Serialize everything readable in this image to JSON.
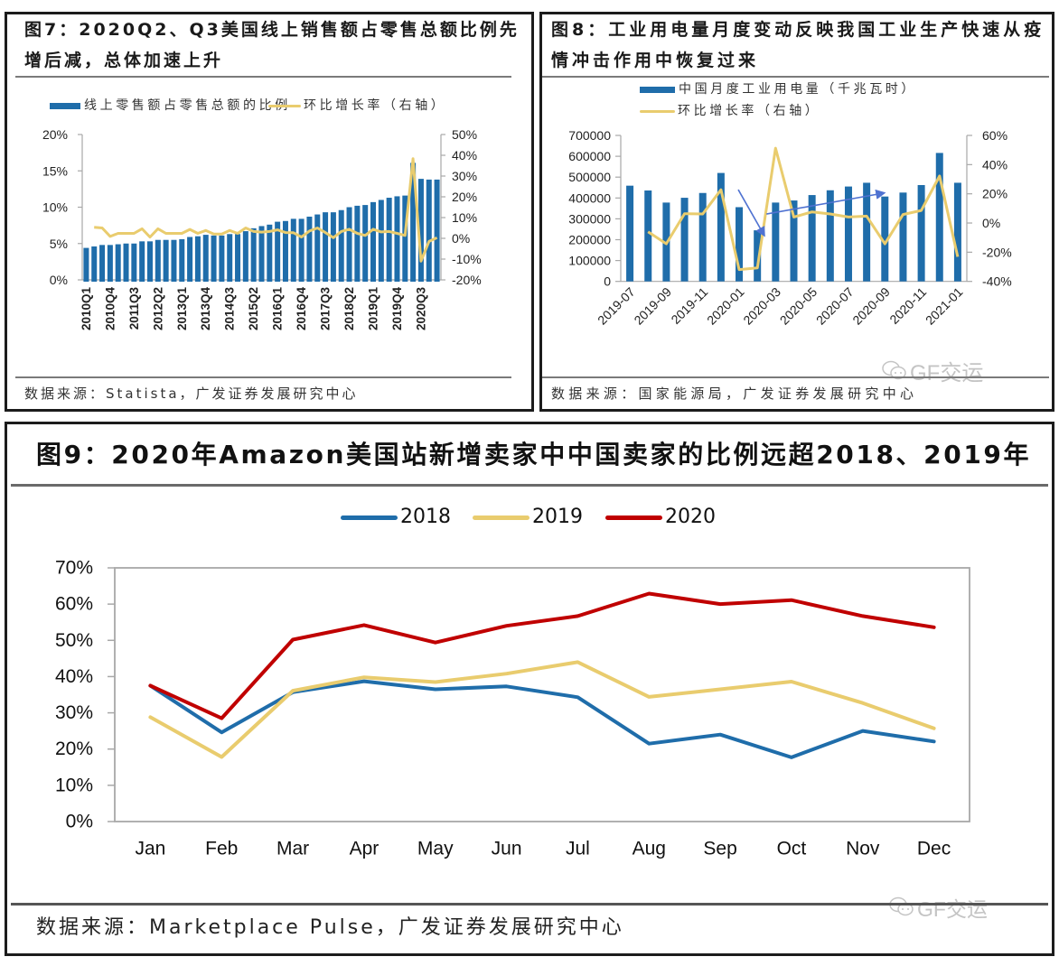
{
  "panels": {
    "fig7": {
      "title_line1": "图7：2020Q2、Q3美国线上销售额占零售总额比例先",
      "title_line2": "增后减，总体加速上升",
      "legend": [
        "线上零售额占零售总额的比例",
        "环比增长率（右轴）"
      ],
      "source": "数据来源：Statista，广发证券发展研究中心"
    },
    "fig8": {
      "title_line1": "图8：工业用电量月度变动反映我国工业生产快速从疫",
      "title_line2": "情冲击作用中恢复过来",
      "legend": [
        "中国月度工业用电量（千兆瓦时）",
        "环比增长率（右轴）"
      ],
      "source": "数据来源：国家能源局，广发证券发展研究中心"
    },
    "fig9": {
      "title": "图9：2020年Amazon美国站新增卖家中中国卖家的比例远超2018、2019年",
      "legend": [
        "2018",
        "2019",
        "2020"
      ],
      "source": "数据来源：Marketplace Pulse，广发证券发展研究中心"
    }
  },
  "watermark": {
    "icon": "wechat-icon",
    "text": "GF交运"
  },
  "colors": {
    "blue": "#1F6DAA",
    "yellow": "#E9CC6E",
    "red": "#C00000",
    "arrow": "#4F72D1"
  },
  "chart_data": [
    {
      "id": "fig7",
      "type": "bar",
      "title": "图7：2020Q2、Q3美国线上销售额占零售总额比例先增后减，总体加速上升",
      "xlabel": "",
      "categories": [
        "2010Q1",
        "2010Q2",
        "2010Q3",
        "2010Q4",
        "2011Q1",
        "2011Q2",
        "2011Q3",
        "2011Q4",
        "2012Q1",
        "2012Q2",
        "2012Q3",
        "2012Q4",
        "2013Q1",
        "2013Q2",
        "2013Q3",
        "2013Q4",
        "2014Q1",
        "2014Q2",
        "2014Q3",
        "2014Q4",
        "2015Q1",
        "2015Q2",
        "2015Q3",
        "2015Q4",
        "2016Q1",
        "2016Q2",
        "2016Q3",
        "2016Q4",
        "2017Q1",
        "2017Q2",
        "2017Q3",
        "2017Q4",
        "2018Q1",
        "2018Q2",
        "2018Q3",
        "2018Q4",
        "2019Q1",
        "2019Q2",
        "2019Q3",
        "2019Q4",
        "2020Q1",
        "2020Q2",
        "2020Q3",
        "2020Q4",
        "2021Q1"
      ],
      "x_tick_labels": [
        "2010Q1",
        "2010Q4",
        "2011Q3",
        "2012Q2",
        "2013Q1",
        "2013Q4",
        "2014Q3",
        "2015Q2",
        "2016Q1",
        "2016Q4",
        "2017Q3",
        "2018Q2",
        "2019Q1",
        "2019Q4",
        "2020Q3"
      ],
      "series": [
        {
          "name": "线上零售额占零售总额的比例",
          "type": "bar",
          "axis": "left",
          "color": "#1F6DAA",
          "unit": "%",
          "values": [
            4.4,
            4.6,
            4.8,
            4.8,
            4.9,
            5.0,
            5.0,
            5.3,
            5.3,
            5.5,
            5.5,
            5.5,
            5.6,
            5.9,
            6.0,
            6.2,
            6.1,
            6.1,
            6.3,
            6.3,
            6.7,
            7.1,
            7.4,
            7.6,
            8.0,
            8.1,
            8.4,
            8.4,
            8.7,
            9.0,
            9.3,
            9.3,
            9.6,
            10.0,
            10.2,
            10.3,
            10.7,
            11.0,
            11.3,
            11.5,
            11.6,
            16.1,
            13.9,
            13.8,
            13.8
          ]
        },
        {
          "name": "环比增长率（右轴）",
          "type": "line",
          "axis": "right",
          "color": "#E9CC6E",
          "unit": "%",
          "values": [
            null,
            5.3,
            5.0,
            0.9,
            2.4,
            2.4,
            2.4,
            4.6,
            0.6,
            4.6,
            2.4,
            2.4,
            2.4,
            4.3,
            2.4,
            3.8,
            2.1,
            2.1,
            3.8,
            2.4,
            5.0,
            3.3,
            3.0,
            3.3,
            4.1,
            2.8,
            2.7,
            0.6,
            3.5,
            5.0,
            2.8,
            0.3,
            3.3,
            4.4,
            2.4,
            1.4,
            4.4,
            3.1,
            3.3,
            2.4,
            1.4,
            38.4,
            -11.0,
            -1.5,
            0.3
          ]
        }
      ],
      "y_left": {
        "range": [
          0,
          20
        ],
        "ticks": [
          0,
          5,
          10,
          15,
          20
        ],
        "tick_labels": [
          "0%",
          "5%",
          "10%",
          "15%",
          "20%"
        ]
      },
      "y_right": {
        "range": [
          -20,
          50
        ],
        "ticks": [
          -20,
          -10,
          0,
          10,
          20,
          30,
          40,
          50
        ],
        "tick_labels": [
          "-20%",
          "-10%",
          "0%",
          "10%",
          "20%",
          "30%",
          "40%",
          "50%"
        ]
      },
      "legend": "top-center",
      "grid": false
    },
    {
      "id": "fig8",
      "type": "bar",
      "title": "图8：工业用电量月度变动反映我国工业生产快速从疫情冲击作用中恢复过来",
      "xlabel": "",
      "categories": [
        "2019-07",
        "2019-08",
        "2019-09",
        "2019-10",
        "2019-11",
        "2019-12",
        "2020-01",
        "2020-02",
        "2020-03",
        "2020-04",
        "2020-05",
        "2020-06",
        "2020-07",
        "2020-08",
        "2020-09",
        "2020-10",
        "2020-11",
        "2020-12",
        "2021-01"
      ],
      "x_tick_labels": [
        "2019-07",
        "2019-09",
        "2019-11",
        "2020-01",
        "2020-03",
        "2020-05",
        "2020-07",
        "2020-09",
        "2020-11",
        "2021-01"
      ],
      "series": [
        {
          "name": "中国月度工业用电量（千兆瓦时）",
          "type": "bar",
          "axis": "left",
          "color": "#1F6DAA",
          "values": [
            459000,
            436000,
            378000,
            401000,
            424000,
            520000,
            356000,
            245000,
            378000,
            388000,
            414000,
            437000,
            455000,
            473000,
            407000,
            426000,
            462000,
            616000,
            473000
          ]
        },
        {
          "name": "环比增长率（右轴）",
          "type": "line",
          "axis": "right",
          "color": "#E9CC6E",
          "unit": "%",
          "values": [
            null,
            -6.0,
            -14.2,
            6.4,
            6.2,
            22.8,
            -31.9,
            -30.7,
            51.3,
            4.1,
            7.6,
            6.2,
            4.1,
            4.7,
            -14.3,
            5.8,
            8.6,
            32.2,
            -23.1
          ]
        }
      ],
      "y_left": {
        "range": [
          0,
          700000
        ],
        "ticks": [
          0,
          100000,
          200000,
          300000,
          400000,
          500000,
          600000,
          700000
        ],
        "tick_labels": [
          "0",
          "100000",
          "200000",
          "300000",
          "400000",
          "500000",
          "600000",
          "700000"
        ]
      },
      "y_right": {
        "range": [
          -40,
          60
        ],
        "ticks": [
          -40,
          -20,
          0,
          20,
          40,
          60
        ],
        "tick_labels": [
          "-40%",
          "-20%",
          "0%",
          "20%",
          "40%",
          "60%"
        ]
      },
      "annotations": [
        {
          "type": "arrow",
          "color": "#4F72D1",
          "from": {
            "x_index": 5.95,
            "y": 440000
          },
          "to": {
            "x_index": 7.35,
            "y": 225000
          }
        },
        {
          "type": "arrow",
          "color": "#4F72D1",
          "from": {
            "x_index": 7.5,
            "y": 323000
          },
          "to": {
            "x_index": 13.9,
            "y": 423000
          }
        }
      ],
      "legend": "top-center",
      "grid": false
    },
    {
      "id": "fig9",
      "type": "line",
      "title": "图9：2020年Amazon美国站新增卖家中中国卖家的比例远超2018、2019年",
      "xlabel": "",
      "ylabel": "",
      "categories": [
        "Jan",
        "Feb",
        "Mar",
        "Apr",
        "May",
        "Jun",
        "Jul",
        "Aug",
        "Sep",
        "Oct",
        "Nov",
        "Dec"
      ],
      "series": [
        {
          "name": "2018",
          "color": "#1F6DAA",
          "values": [
            37.5,
            24.6,
            35.7,
            38.7,
            36.5,
            37.3,
            34.3,
            21.5,
            24.0,
            17.7,
            25.0,
            22.1
          ]
        },
        {
          "name": "2019",
          "color": "#E9CC6E",
          "values": [
            28.8,
            17.8,
            36.1,
            39.8,
            38.5,
            40.8,
            44.0,
            34.4,
            36.5,
            38.6,
            32.7,
            25.7
          ]
        },
        {
          "name": "2020",
          "color": "#C00000",
          "values": [
            37.5,
            28.5,
            50.2,
            54.2,
            49.4,
            54.0,
            56.7,
            62.9,
            60.0,
            61.1,
            56.7,
            53.6
          ]
        }
      ],
      "y": {
        "range": [
          0,
          70
        ],
        "ticks": [
          0,
          10,
          20,
          30,
          40,
          50,
          60,
          70
        ],
        "tick_labels": [
          "0%",
          "10%",
          "20%",
          "30%",
          "40%",
          "50%",
          "60%",
          "70%"
        ]
      },
      "legend": "top-center",
      "grid": false
    }
  ]
}
